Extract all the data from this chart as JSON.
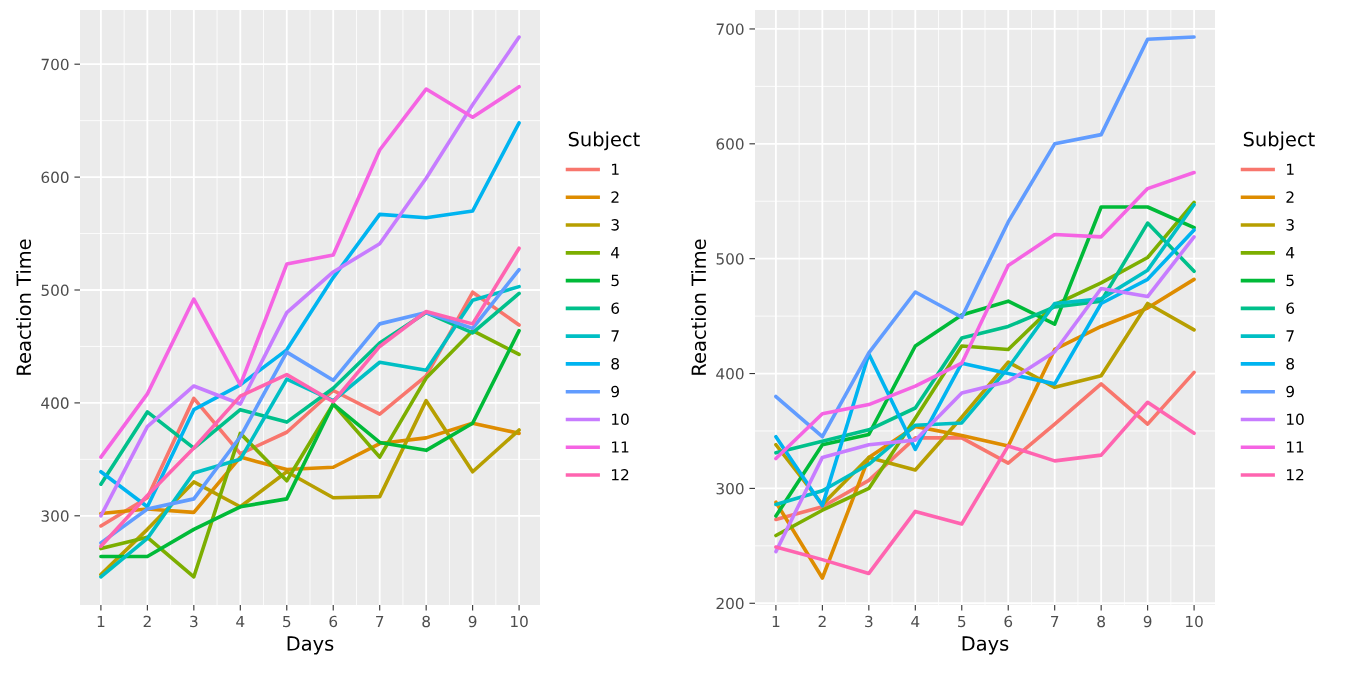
{
  "chart_data": [
    {
      "type": "line",
      "xlabel": "Days",
      "ylabel": "Reaction Time",
      "legend_title": "Subject",
      "legend": "right",
      "grid": true,
      "x": [
        1,
        2,
        3,
        4,
        5,
        6,
        7,
        8,
        9,
        10
      ],
      "xlim": [
        0.55,
        10.45
      ],
      "xticks": [
        1,
        2,
        3,
        4,
        5,
        6,
        7,
        8,
        9,
        10
      ],
      "ylim": [
        221,
        748
      ],
      "yticks": [
        300,
        400,
        500,
        600,
        700
      ],
      "series": [
        {
          "name": "1",
          "color": "#F8766D",
          "values": [
            291,
            316,
            404,
            355,
            374,
            411,
            390,
            424,
            498,
            469
          ]
        },
        {
          "name": "2",
          "color": "#DE8C00",
          "values": [
            302,
            306,
            303,
            352,
            341,
            343,
            364,
            369,
            382,
            373
          ]
        },
        {
          "name": "3",
          "color": "#B79F00",
          "values": [
            248,
            288,
            330,
            308,
            339,
            316,
            317,
            402,
            339,
            376
          ]
        },
        {
          "name": "4",
          "color": "#7CAE00",
          "values": [
            271,
            281,
            246,
            373,
            331,
            399,
            352,
            422,
            464,
            443
          ]
        },
        {
          "name": "5",
          "color": "#00BA38",
          "values": [
            264,
            264,
            288,
            308,
            315,
            399,
            365,
            358,
            382,
            464
          ]
        },
        {
          "name": "6",
          "color": "#00C08B",
          "values": [
            328,
            392,
            360,
            394,
            383,
            413,
            453,
            480,
            462,
            497
          ]
        },
        {
          "name": "7",
          "color": "#00BFC4",
          "values": [
            246,
            280,
            338,
            350,
            421,
            402,
            436,
            429,
            491,
            503
          ]
        },
        {
          "name": "8",
          "color": "#00B4F0",
          "values": [
            339,
            308,
            394,
            416,
            447,
            511,
            567,
            564,
            570,
            648
          ]
        },
        {
          "name": "9",
          "color": "#619CFF",
          "values": [
            276,
            306,
            315,
            370,
            445,
            420,
            470,
            480,
            466,
            518
          ]
        },
        {
          "name": "10",
          "color": "#C77CFF",
          "values": [
            300,
            379,
            415,
            399,
            480,
            516,
            541,
            599,
            664,
            724
          ]
        },
        {
          "name": "11",
          "color": "#F564E3",
          "values": [
            352,
            408,
            492,
            416,
            523,
            531,
            624,
            678,
            653,
            680
          ]
        },
        {
          "name": "12",
          "color": "#FF64B0",
          "values": [
            273,
            318,
            360,
            406,
            425,
            401,
            450,
            481,
            470,
            537
          ]
        }
      ]
    },
    {
      "type": "line",
      "xlabel": "Days",
      "ylabel": "Reaction Time",
      "legend_title": "Subject",
      "legend": "right",
      "grid": true,
      "x": [
        1,
        2,
        3,
        4,
        5,
        6,
        7,
        8,
        9,
        10
      ],
      "xlim": [
        0.55,
        10.45
      ],
      "xticks": [
        1,
        2,
        3,
        4,
        5,
        6,
        7,
        8,
        9,
        10
      ],
      "ylim": [
        198.5,
        716.5
      ],
      "yticks": [
        200,
        300,
        400,
        500,
        600,
        700
      ],
      "series": [
        {
          "name": "1",
          "color": "#F8766D",
          "values": [
            273,
            284,
            307,
            344,
            344,
            322,
            356,
            391,
            356,
            401
          ]
        },
        {
          "name": "2",
          "color": "#DE8C00",
          "values": [
            288,
            222,
            327,
            354,
            346,
            337,
            421,
            441,
            457,
            482
          ]
        },
        {
          "name": "3",
          "color": "#B79F00",
          "values": [
            338,
            286,
            327,
            316,
            362,
            410,
            388,
            398,
            461,
            438
          ]
        },
        {
          "name": "4",
          "color": "#7CAE00",
          "values": [
            259,
            281,
            300,
            361,
            424,
            421,
            460,
            479,
            501,
            549
          ]
        },
        {
          "name": "5",
          "color": "#00BA38",
          "values": [
            276,
            338,
            347,
            424,
            451,
            463,
            443,
            545,
            545,
            527
          ]
        },
        {
          "name": "6",
          "color": "#00C08B",
          "values": [
            331,
            341,
            351,
            370,
            431,
            441,
            458,
            463,
            531,
            489
          ]
        },
        {
          "name": "7",
          "color": "#00BFC4",
          "values": [
            286,
            298,
            321,
            355,
            357,
            405,
            461,
            465,
            490,
            547
          ]
        },
        {
          "name": "8",
          "color": "#00B4F0",
          "values": [
            345,
            285,
            417,
            334,
            409,
            400,
            391,
            461,
            482,
            525
          ]
        },
        {
          "name": "9",
          "color": "#619CFF",
          "values": [
            380,
            345,
            418,
            471,
            449,
            532,
            600,
            608,
            691,
            693
          ]
        },
        {
          "name": "10",
          "color": "#C77CFF",
          "values": [
            245,
            327,
            338,
            342,
            383,
            393,
            419,
            474,
            467,
            519
          ]
        },
        {
          "name": "11",
          "color": "#F564E3",
          "values": [
            326,
            365,
            373,
            389,
            409,
            494,
            521,
            519,
            561,
            575
          ]
        },
        {
          "name": "12",
          "color": "#FF64B0",
          "values": [
            249,
            238,
            226,
            280,
            269,
            337,
            324,
            329,
            375,
            348
          ]
        }
      ]
    }
  ]
}
